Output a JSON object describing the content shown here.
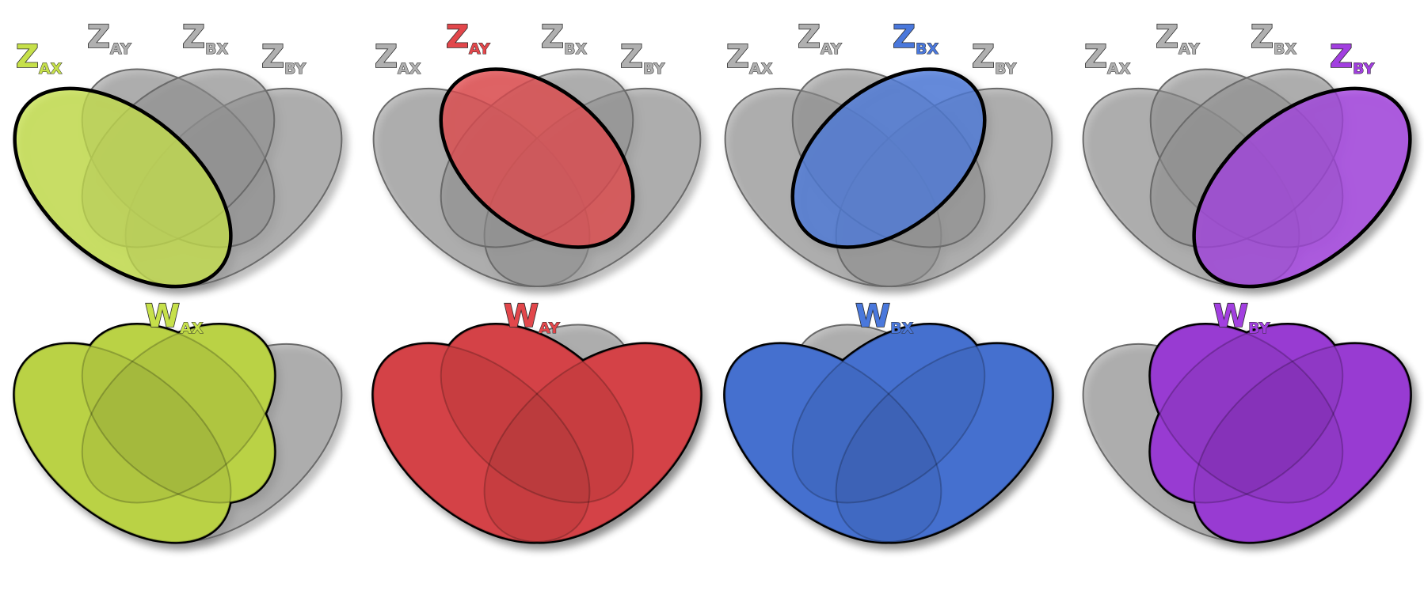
{
  "colors": {
    "grey": "#8e8e8e",
    "ax": "#c6e04a",
    "ay": "#e2474b",
    "bx": "#4a78dc",
    "by": "#a23fe0",
    "ax_light": "#e3ff74",
    "ay_light": "#ff7b7b",
    "bx_light": "#7ca4ff",
    "by_light": "#cd72ff",
    "label_grey": "#b0b0b0"
  },
  "sets": [
    {
      "key": "AX",
      "sub": "AX",
      "color_key": "ax"
    },
    {
      "key": "AY",
      "sub": "AY",
      "color_key": "ay"
    },
    {
      "key": "BX",
      "sub": "BX",
      "color_key": "bx"
    },
    {
      "key": "BY",
      "sub": "BY",
      "color_key": "by"
    }
  ],
  "top_row": {
    "letter": "Z",
    "panels": [
      {
        "highlight": "AX"
      },
      {
        "highlight": "AY"
      },
      {
        "highlight": "BX"
      },
      {
        "highlight": "BY"
      }
    ]
  },
  "bottom_row": {
    "letter": "W",
    "panels": [
      {
        "label_sub": "AX",
        "color_key": "ax",
        "union": [
          "AX",
          "AY",
          "BX"
        ]
      },
      {
        "label_sub": "AY",
        "color_key": "ay",
        "union": [
          "AX",
          "AY",
          "BY"
        ]
      },
      {
        "label_sub": "BX",
        "color_key": "bx",
        "union": [
          "AX",
          "BX",
          "BY"
        ]
      },
      {
        "label_sub": "BY",
        "color_key": "by",
        "union": [
          "AY",
          "BX",
          "BY"
        ]
      }
    ]
  }
}
